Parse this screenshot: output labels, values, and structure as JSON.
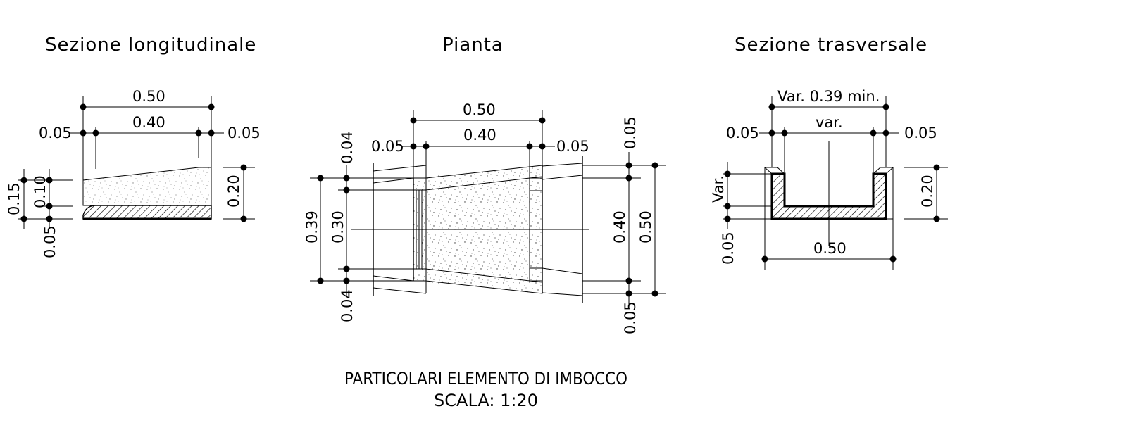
{
  "titles": {
    "left": "Sezione longitudinale",
    "middle": "Pianta",
    "right": "Sezione trasversale"
  },
  "caption": {
    "line1": "PARTICOLARI ELEMENTO DI IMBOCCO",
    "line2": "SCALA: 1:20"
  },
  "longitudinal": {
    "total_width": "0.50",
    "inner_width": "0.40",
    "left_offset": "0.05",
    "right_offset": "0.05",
    "height_left": "0.15",
    "height_mid": "0.10",
    "base": "0.05",
    "height_right": "0.20"
  },
  "plan": {
    "top_total": "0.50",
    "top_inner": "0.40",
    "top_left": "0.05",
    "top_right": "0.05",
    "left_top": "0.04",
    "left_outer": "0.39",
    "left_inner": "0.30",
    "left_bottom": "0.04",
    "right_top": "0.05",
    "right_inner": "0.40",
    "right_outer": "0.50",
    "right_bottom": "0.05"
  },
  "transversal": {
    "top_total": "Var. 0.39 min.",
    "inner": "var.",
    "left_offset": "0.05",
    "right_offset": "0.05",
    "left_height": "Var.",
    "base": "0.05",
    "right_height": "0.20",
    "bottom_width": "0.50"
  }
}
